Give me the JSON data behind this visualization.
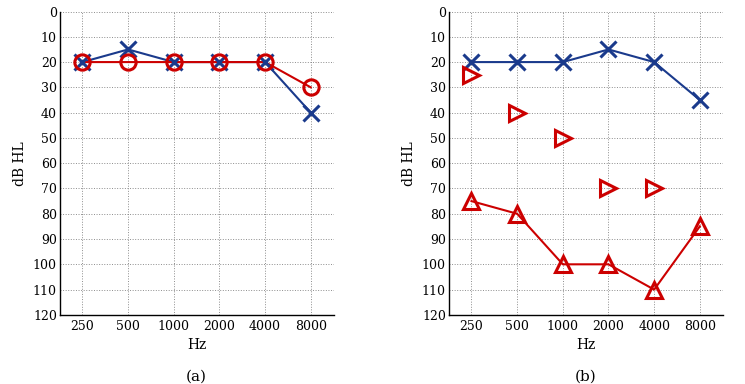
{
  "freqs_log": [
    250,
    500,
    1000,
    2000,
    4000,
    8000
  ],
  "panel_a": {
    "blue_x": [
      20,
      15,
      20,
      20,
      20,
      40
    ],
    "red_o": [
      20,
      20,
      20,
      20,
      20,
      30
    ]
  },
  "panel_b": {
    "blue_x": [
      20,
      20,
      20,
      15,
      20,
      35
    ],
    "red_triangle_ac": [
      75,
      80,
      100,
      100,
      110,
      85
    ],
    "red_arrow_bc": [
      25,
      40,
      50,
      70,
      70,
      null
    ]
  },
  "ylim_min": 0,
  "ylim_max": 120,
  "yticks": [
    0,
    10,
    20,
    30,
    40,
    50,
    60,
    70,
    80,
    90,
    100,
    110,
    120
  ],
  "ylabel": "dB HL",
  "xlabel": "Hz",
  "blue_color": "#1a3a8c",
  "red_color": "#cc0000",
  "label_a": "(a)",
  "label_b": "(b)"
}
